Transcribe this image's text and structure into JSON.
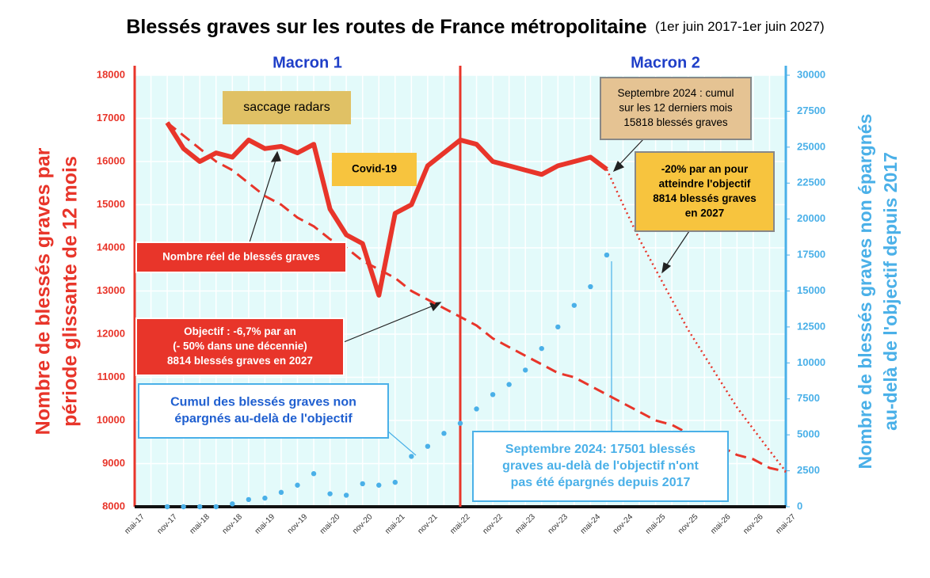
{
  "chart_data": {
    "type": "line",
    "title": "Blessés graves sur les routes de France métropolitaine",
    "subtitle": "(1er juin 2017-1er juin 2027)",
    "ylabel": [
      "Nombre de blessés graves par",
      "période glissante de 12 mois"
    ],
    "y2label": [
      "Nombre de blessés graves non épargnés",
      "au-delà de l'objectif depuis 2017"
    ],
    "periods": [
      "Macron 1",
      "Macron 2"
    ],
    "categories": [
      "mai-17",
      null,
      "nov-17",
      null,
      "mai-18",
      null,
      "nov-18",
      null,
      "mai-19",
      null,
      "nov-19",
      null,
      "mai-20",
      null,
      "nov-20",
      null,
      "mai-21",
      null,
      "nov-21",
      null,
      "mai-22",
      null,
      "nov-22",
      null,
      "mai-23",
      null,
      "nov-23",
      null,
      "mai-24",
      null,
      "nov-24",
      null,
      "mai-25",
      null,
      "nov-25",
      null,
      "mai-26",
      null,
      "nov-26",
      null,
      "mai-27"
    ],
    "ylim": [
      8000,
      18000
    ],
    "yticks": [
      8000,
      9000,
      10000,
      11000,
      12000,
      13000,
      14000,
      15000,
      16000,
      17000,
      18000
    ],
    "y2lim": [
      0,
      30000
    ],
    "y2ticks": [
      0,
      2500,
      5000,
      7500,
      10000,
      12500,
      15000,
      17500,
      20000,
      22500,
      25000,
      27500,
      30000
    ],
    "grid": true,
    "series": [
      {
        "color": "#e8352a",
        "style": "solid",
        "values": [
          null,
          null,
          16900,
          16300,
          16000,
          16200,
          16100,
          16500,
          16300,
          16350,
          16200,
          16400,
          14900,
          14300,
          14100,
          12900,
          14800,
          15000,
          15900,
          16200,
          16500,
          16400,
          16000,
          15900,
          15800,
          15700,
          15900,
          16000,
          16100,
          15818,
          null,
          null,
          null,
          null,
          null,
          null,
          null,
          null,
          null,
          null,
          null
        ]
      },
      {
        "color": "#e8352a",
        "style": "dashed",
        "values": [
          null,
          null,
          16900,
          16600,
          16300,
          16000,
          15800,
          15500,
          15200,
          15000,
          14700,
          14500,
          14200,
          14000,
          13700,
          13500,
          13300,
          13000,
          12800,
          12600,
          12400,
          12200,
          11900,
          11700,
          11500,
          11300,
          11100,
          11000,
          10800,
          10600,
          10400,
          10200,
          10000,
          9900,
          9700,
          9500,
          9400,
          9200,
          9100,
          8900,
          8814
        ]
      },
      {
        "color": "#e8352a",
        "style": "dotted",
        "values": [
          null,
          null,
          null,
          null,
          null,
          null,
          null,
          null,
          null,
          null,
          null,
          null,
          null,
          null,
          null,
          null,
          null,
          null,
          null,
          null,
          null,
          null,
          null,
          null,
          null,
          null,
          null,
          null,
          null,
          15818,
          15000,
          14200,
          13500,
          12800,
          12100,
          11500,
          10900,
          10300,
          9800,
          9300,
          8814
        ]
      },
      {
        "color": "#4ab0e8",
        "style": "dots",
        "axis": "y2",
        "values": [
          null,
          null,
          0,
          0,
          0,
          0,
          200,
          500,
          600,
          1000,
          1500,
          2300,
          900,
          800,
          1600,
          1500,
          1700,
          3500,
          4200,
          5100,
          5800,
          6800,
          7800,
          8500,
          9500,
          11000,
          12500,
          14000,
          15300,
          17501,
          null,
          null,
          null,
          null,
          null,
          null,
          null,
          null,
          null,
          null,
          null
        ]
      }
    ],
    "annotations": [
      {
        "lines": [
          "saccage radars"
        ],
        "fill": "#e0c165",
        "text_color": "#000000",
        "border": "#e0c165"
      },
      {
        "lines": [
          "Covid-19"
        ],
        "fill": "#f7c43e",
        "text_color": "#000000",
        "border": "#f7c43e"
      },
      {
        "lines": [
          "Nombre réel de blessés graves"
        ],
        "fill": "#e8352a",
        "text_color": "#ffffff",
        "border": "#ffffff"
      },
      {
        "lines": [
          "Objectif : -6,7% par an",
          "(- 50% dans une décennie)",
          "8814 blessés graves en 2027"
        ],
        "fill": "#e8352a",
        "text_color": "#ffffff",
        "border": "#ffffff"
      },
      {
        "lines": [
          "Cumul des blessés graves non",
          "épargnés  au-delà de l'objectif"
        ],
        "fill": "#ffffff",
        "text_color": "#1f5fd0",
        "border": "#4ab0e8"
      },
      {
        "lines": [
          "Septembre 2024 : cumul",
          "sur les 12 derniers mois",
          "15818 blessés graves"
        ],
        "fill": "#e5c393",
        "text_color": "#000000",
        "border": "#888888"
      },
      {
        "lines": [
          "-20% par an pour",
          "atteindre l'objectif",
          "8814 blessés graves",
          "en 2027"
        ],
        "fill": "#f7c43e",
        "text_color": "#000000",
        "border": "#888888"
      },
      {
        "lines": [
          "Septembre 2024: 17501 blessés",
          "graves au-delà de l'objectif n'ont",
          "pas été épargnés depuis 2017"
        ],
        "fill": "#ffffff",
        "text_color": "#4ab0e8",
        "border": "#4ab0e8"
      }
    ]
  }
}
